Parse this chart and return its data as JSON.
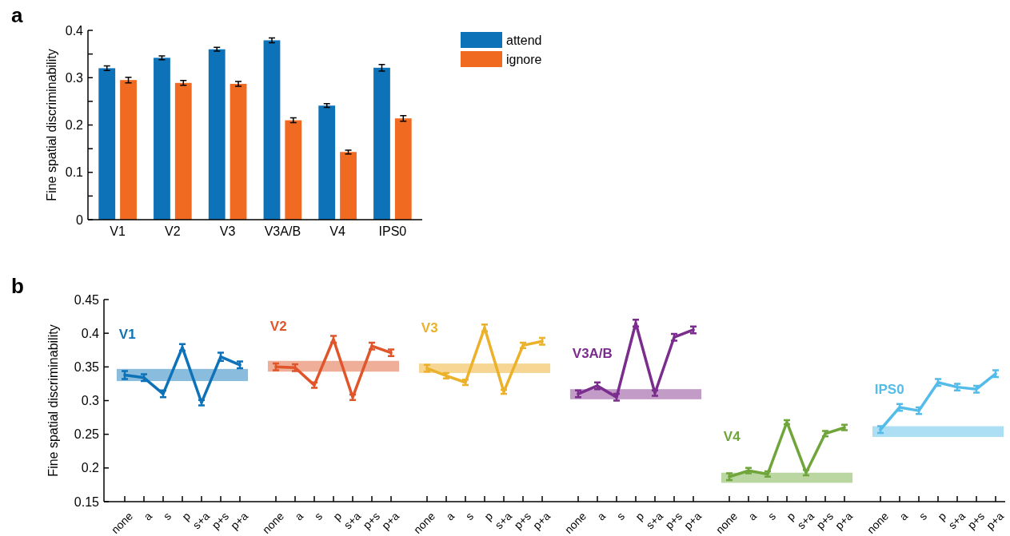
{
  "chart_data": [
    {
      "type": "bar",
      "annotations": [
        "a"
      ],
      "ylabel": "Fine spatial discriminability",
      "categories": [
        "V1",
        "V2",
        "V3",
        "V3A/B",
        "V4",
        "IPS0"
      ],
      "ylim": [
        0,
        0.4
      ],
      "yticks": [
        0,
        {
          "value": 0.05,
          "label": null
        },
        0.1,
        {
          "value": 0.15,
          "label": null
        },
        0.2,
        {
          "value": 0.25,
          "label": null
        },
        0.3,
        {
          "value": 0.35,
          "label": null
        },
        0.4
      ],
      "legend": "top right",
      "series": [
        {
          "name": "attend",
          "color": "#0e72b8",
          "values": [
            0.32,
            0.342,
            0.36,
            0.379,
            0.241,
            0.321
          ],
          "errors": [
            0.005,
            0.004,
            0.004,
            0.005,
            0.004,
            0.007
          ]
        },
        {
          "name": "ignore",
          "color": "#f06a22",
          "values": [
            0.295,
            0.289,
            0.287,
            0.21,
            0.143,
            0.214
          ],
          "errors": [
            0.006,
            0.005,
            0.005,
            0.005,
            0.004,
            0.006
          ]
        }
      ]
    },
    {
      "type": "line",
      "annotations": [
        "b"
      ],
      "ylabel": "Fine spatial discriminability",
      "categories": [
        "none",
        "a",
        "s",
        "p",
        "s+a",
        "p+s",
        "p+a"
      ],
      "ylim": [
        0.15,
        0.45
      ],
      "yticks": [
        0.15,
        0.2,
        0.25,
        0.3,
        0.35,
        0.4,
        0.45
      ],
      "bands": [
        {
          "axis": "y",
          "from": 0.329,
          "to": 0.347,
          "color": "#84b8dc"
        }
      ],
      "series": [
        {
          "name": "V1",
          "color": "#0e72b8",
          "values": [
            0.338,
            0.334,
            0.31,
            0.379,
            0.297,
            0.365,
            0.353
          ],
          "errors": [
            0.006,
            0.005,
            0.005,
            0.005,
            0.004,
            0.006,
            0.005
          ]
        }
      ]
    },
    {
      "type": "line",
      "tick_labels": "x",
      "categories": [
        "none",
        "a",
        "s",
        "p",
        "s+a",
        "p+s",
        "p+a"
      ],
      "ylim": [
        0.15,
        0.45
      ],
      "bands": [
        {
          "axis": "y",
          "from": 0.343,
          "to": 0.359,
          "color": "#eeaa92"
        }
      ],
      "series": [
        {
          "name": "V2",
          "color": "#e0552a",
          "values": [
            0.35,
            0.349,
            0.323,
            0.391,
            0.305,
            0.381,
            0.371
          ],
          "errors": [
            0.005,
            0.005,
            0.004,
            0.005,
            0.004,
            0.005,
            0.005
          ]
        }
      ]
    },
    {
      "type": "line",
      "tick_labels": "x",
      "categories": [
        "none",
        "a",
        "s",
        "p",
        "s+a",
        "p+s",
        "p+a"
      ],
      "ylim": [
        0.15,
        0.45
      ],
      "bands": [
        {
          "axis": "y",
          "from": 0.341,
          "to": 0.355,
          "color": "#f5d48c"
        }
      ],
      "series": [
        {
          "name": "V3",
          "color": "#ecb12a",
          "values": [
            0.348,
            0.337,
            0.327,
            0.408,
            0.313,
            0.382,
            0.388
          ],
          "errors": [
            0.005,
            0.004,
            0.004,
            0.005,
            0.003,
            0.004,
            0.005
          ]
        }
      ]
    },
    {
      "type": "line",
      "tick_labels": "x",
      "categories": [
        "none",
        "a",
        "s",
        "p",
        "s+a",
        "p+s",
        "p+a"
      ],
      "ylim": [
        0.15,
        0.45
      ],
      "bands": [
        {
          "axis": "y",
          "from": 0.302,
          "to": 0.317,
          "color": "#bf96c4"
        }
      ],
      "series": [
        {
          "name": "V3A/B",
          "color": "#7b2d8e",
          "values": [
            0.31,
            0.322,
            0.305,
            0.415,
            0.311,
            0.394,
            0.405
          ],
          "errors": [
            0.005,
            0.005,
            0.005,
            0.005,
            0.004,
            0.005,
            0.005
          ]
        }
      ]
    },
    {
      "type": "line",
      "tick_labels": "x",
      "categories": [
        "none",
        "a",
        "s",
        "p",
        "s+a",
        "p+s",
        "p+a"
      ],
      "ylim": [
        0.15,
        0.45
      ],
      "bands": [
        {
          "axis": "y",
          "from": 0.178,
          "to": 0.193,
          "color": "#b6d49c"
        }
      ],
      "series": [
        {
          "name": "V4",
          "color": "#6fa53a",
          "values": [
            0.187,
            0.196,
            0.191,
            0.268,
            0.193,
            0.251,
            0.26
          ],
          "errors": [
            0.005,
            0.004,
            0.004,
            0.003,
            0.004,
            0.004,
            0.004
          ]
        }
      ]
    },
    {
      "type": "line",
      "tick_labels": "x",
      "categories": [
        "none",
        "a",
        "s",
        "p",
        "s+a",
        "p+s",
        "p+a"
      ],
      "ylim": [
        0.15,
        0.45
      ],
      "bands": [
        {
          "axis": "y",
          "from": 0.246,
          "to": 0.262,
          "color": "#a8dcf3"
        }
      ],
      "series": [
        {
          "name": "IPS0",
          "color": "#53bce9",
          "values": [
            0.257,
            0.29,
            0.285,
            0.327,
            0.32,
            0.317,
            0.34
          ],
          "errors": [
            0.005,
            0.005,
            0.005,
            0.005,
            0.005,
            0.005,
            0.005
          ]
        }
      ]
    }
  ]
}
